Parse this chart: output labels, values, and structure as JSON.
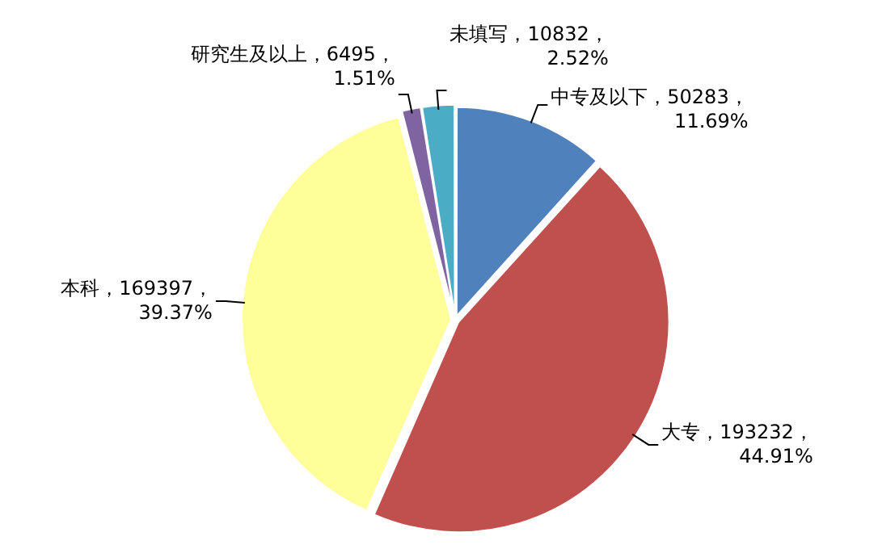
{
  "chart_data": {
    "type": "pie",
    "categories": [
      "中专及以下",
      "大专",
      "本科",
      "研究生及以上",
      "未填写"
    ],
    "values": [
      50283,
      193232,
      169397,
      6495,
      10832
    ],
    "value_labels": [
      "50283，11.69%",
      "193232，44.91%",
      "169397，39.37%",
      "6495，1.51%",
      "10832，2.52%"
    ],
    "colors": [
      "#4f81bd",
      "#c0504d",
      "#ffff99",
      "#8064a2",
      "#4bacc6"
    ],
    "legend": false
  }
}
